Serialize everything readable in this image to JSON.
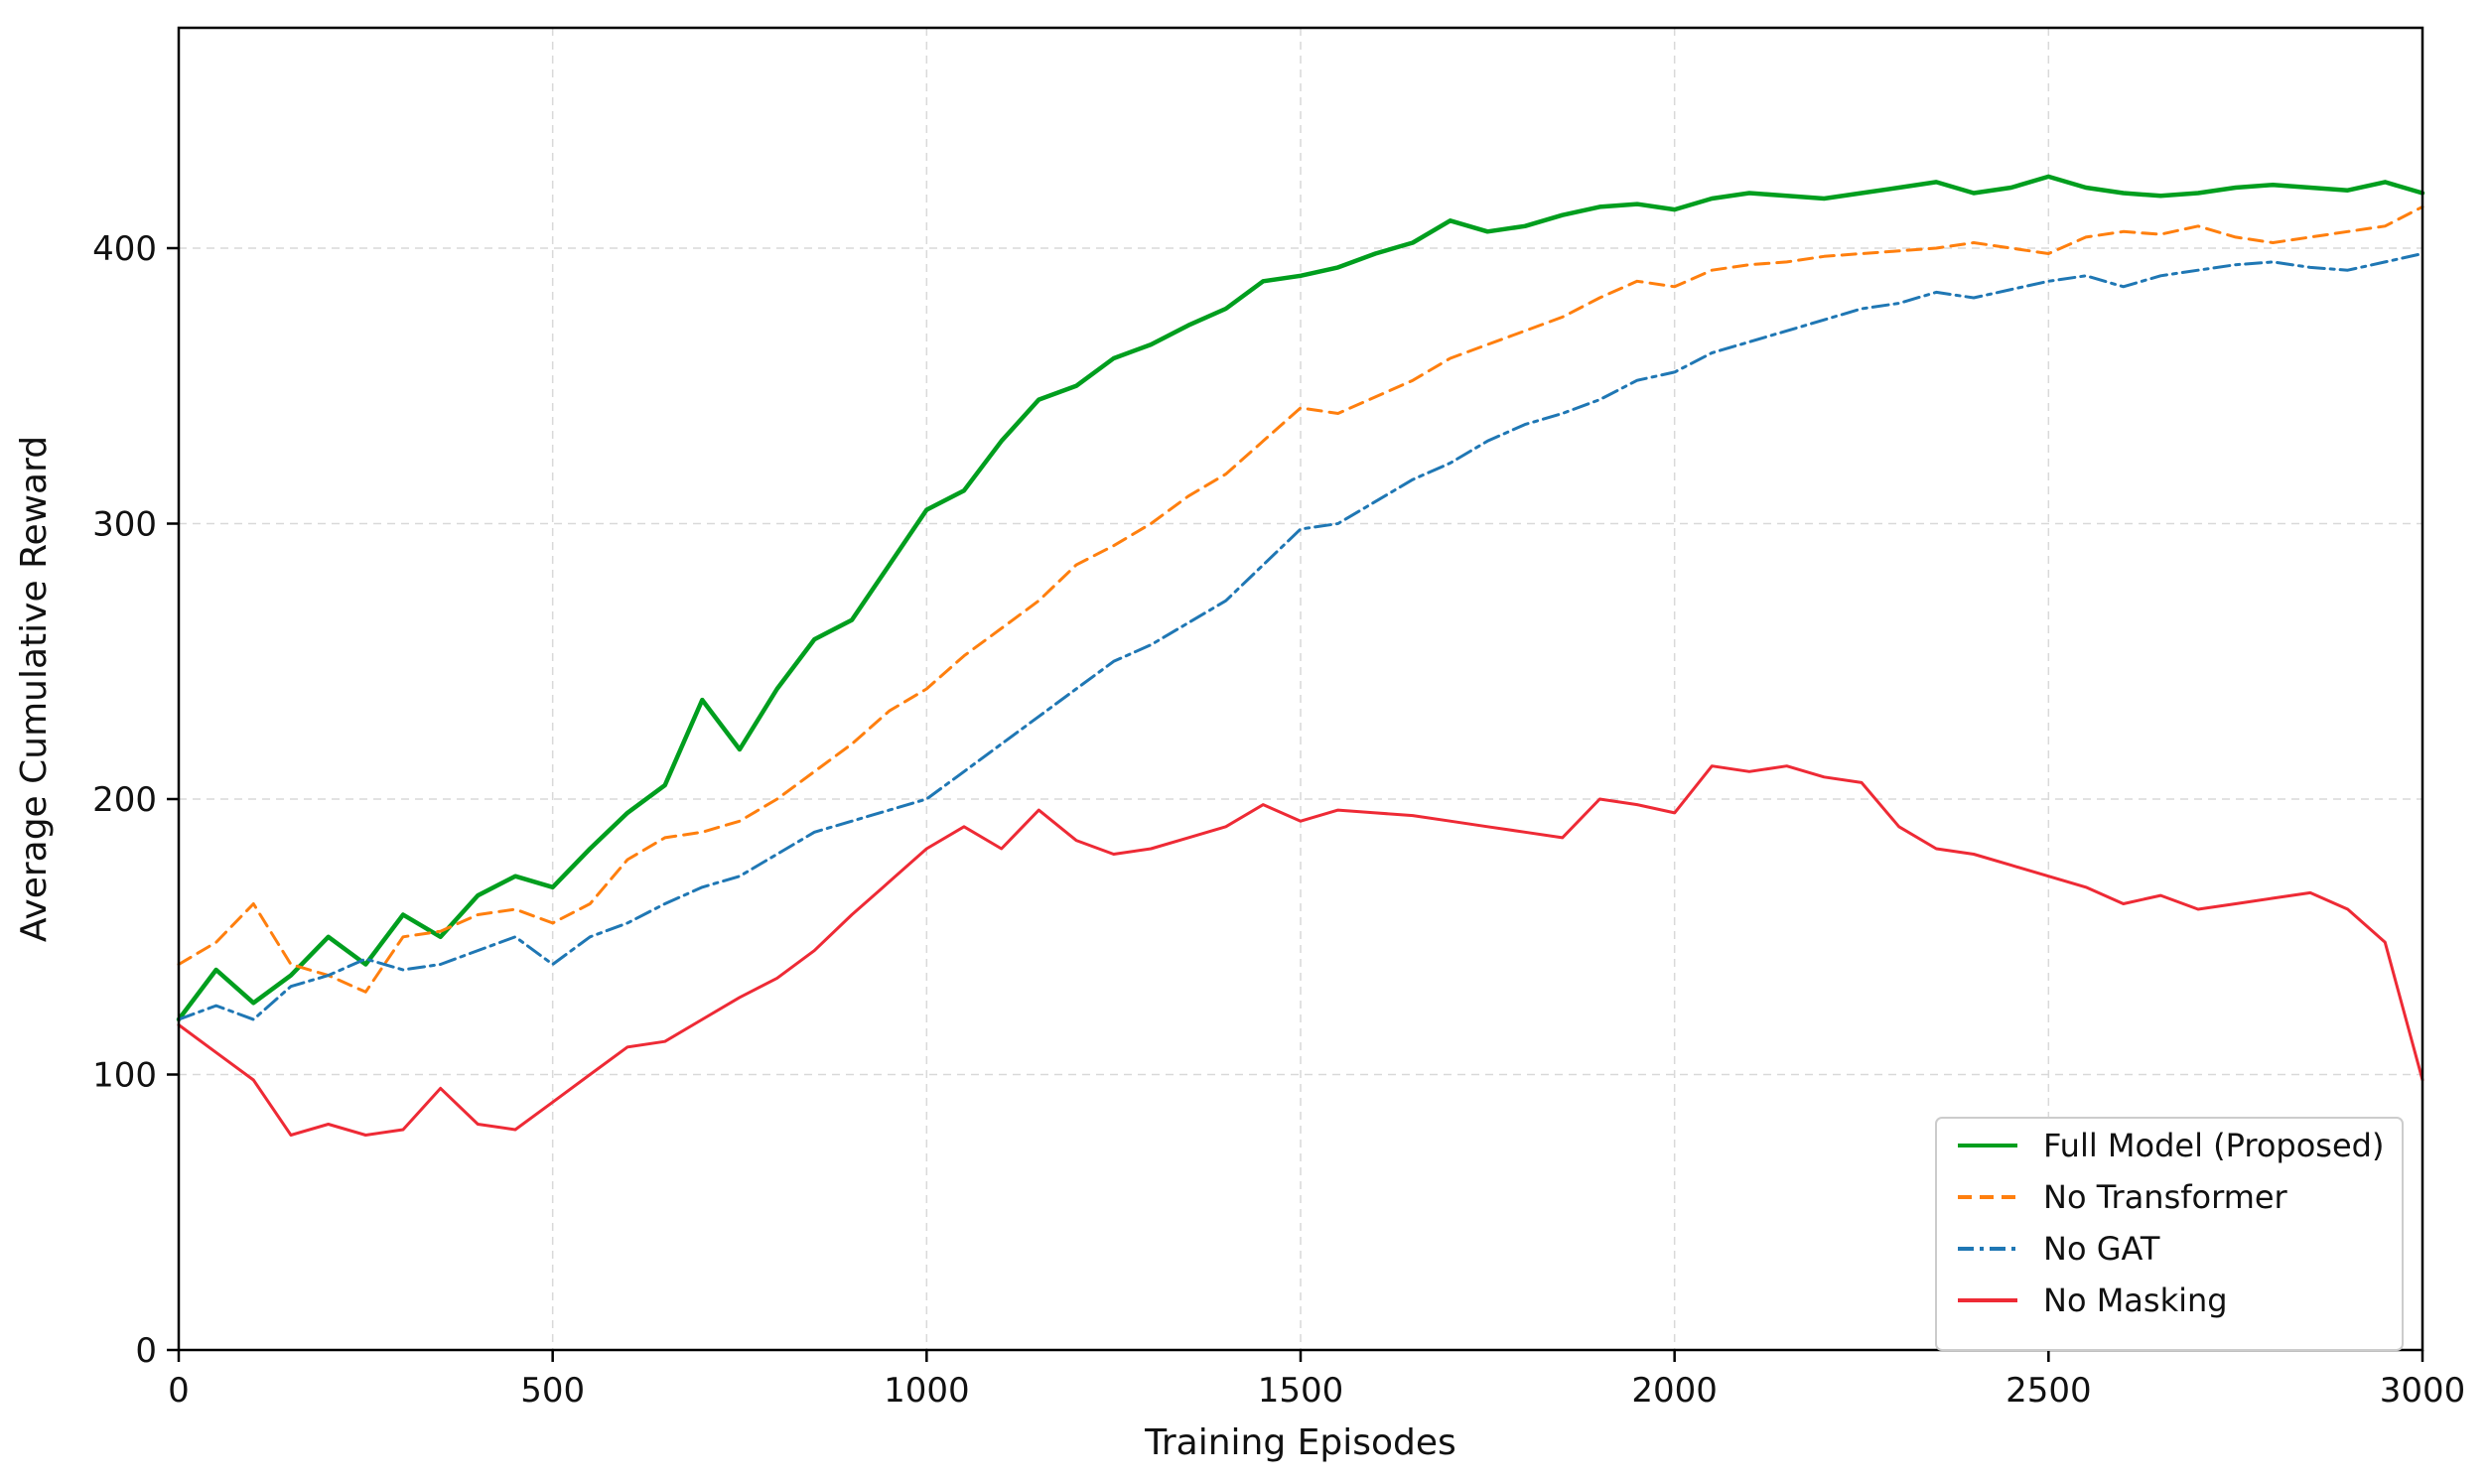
{
  "chart_data": {
    "type": "line",
    "xlabel": "Training Episodes",
    "ylabel": "Average Cumulative Reward",
    "xlim": [
      0,
      3000
    ],
    "ylim": [
      0,
      480
    ],
    "xticks": [
      0,
      500,
      1000,
      1500,
      2000,
      2500,
      3000
    ],
    "xtick_labels": [
      "0",
      "500",
      "1000",
      "1500",
      "2000",
      "2500",
      "3000"
    ],
    "yticks": [
      0,
      100,
      200,
      300,
      400
    ],
    "ytick_labels": [
      "0",
      "100",
      "200",
      "300",
      "400"
    ],
    "grid": true,
    "legend_position": "lower-right",
    "x": [
      0,
      50,
      100,
      150,
      200,
      250,
      300,
      350,
      400,
      450,
      500,
      550,
      600,
      650,
      700,
      750,
      800,
      850,
      900,
      950,
      1000,
      1050,
      1100,
      1150,
      1200,
      1250,
      1300,
      1350,
      1400,
      1450,
      1500,
      1550,
      1600,
      1650,
      1700,
      1750,
      1800,
      1850,
      1900,
      1950,
      2000,
      2050,
      2100,
      2150,
      2200,
      2250,
      2300,
      2350,
      2400,
      2450,
      2500,
      2550,
      2600,
      2650,
      2700,
      2750,
      2800,
      2850,
      2900,
      2950,
      3000
    ],
    "series": [
      {
        "name": "Full Model (Proposed)",
        "color": "#009e1e",
        "dash": "solid",
        "values": [
          120,
          138,
          126,
          136,
          150,
          140,
          158,
          150,
          165,
          172,
          168,
          182,
          195,
          205,
          236,
          218,
          240,
          258,
          265,
          285,
          305,
          312,
          330,
          345,
          350,
          360,
          365,
          372,
          378,
          388,
          390,
          393,
          398,
          402,
          410,
          406,
          408,
          412,
          415,
          416,
          414,
          418,
          420,
          419,
          418,
          420,
          422,
          424,
          420,
          422,
          426,
          422,
          420,
          419,
          420,
          422,
          423,
          422,
          421,
          424,
          420
        ]
      },
      {
        "name": "No Transformer",
        "color": "#ff7f0e",
        "dash": "dashed",
        "values": [
          140,
          148,
          162,
          140,
          136,
          130,
          150,
          152,
          158,
          160,
          155,
          162,
          178,
          186,
          188,
          192,
          200,
          210,
          220,
          232,
          240,
          252,
          262,
          272,
          285,
          292,
          300,
          310,
          318,
          330,
          342,
          340,
          346,
          352,
          360,
          365,
          370,
          375,
          382,
          388,
          386,
          392,
          394,
          395,
          397,
          398,
          399,
          400,
          402,
          400,
          398,
          404,
          406,
          405,
          408,
          404,
          402,
          404,
          406,
          408,
          415
        ]
      },
      {
        "name": "No GAT",
        "color": "#1f77b4",
        "dash": "dashdot",
        "values": [
          120,
          125,
          120,
          132,
          136,
          142,
          138,
          140,
          145,
          150,
          140,
          150,
          155,
          162,
          168,
          172,
          180,
          188,
          192,
          196,
          200,
          210,
          220,
          230,
          240,
          250,
          256,
          264,
          272,
          285,
          298,
          300,
          308,
          316,
          322,
          330,
          336,
          340,
          345,
          352,
          355,
          362,
          366,
          370,
          374,
          378,
          380,
          384,
          382,
          385,
          388,
          390,
          386,
          390,
          392,
          394,
          395,
          393,
          392,
          395,
          398
        ]
      },
      {
        "name": "No Masking",
        "color": "#ee2a35",
        "dash": "solid",
        "values": [
          118,
          108,
          98,
          78,
          82,
          78,
          80,
          95,
          82,
          80,
          90,
          100,
          110,
          112,
          120,
          128,
          135,
          145,
          158,
          170,
          182,
          190,
          182,
          196,
          185,
          180,
          182,
          186,
          190,
          198,
          192,
          196,
          195,
          194,
          192,
          190,
          188,
          186,
          200,
          198,
          195,
          212,
          210,
          212,
          208,
          206,
          190,
          182,
          180,
          176,
          172,
          168,
          162,
          165,
          160,
          162,
          164,
          166,
          160,
          148,
          98
        ]
      }
    ]
  }
}
